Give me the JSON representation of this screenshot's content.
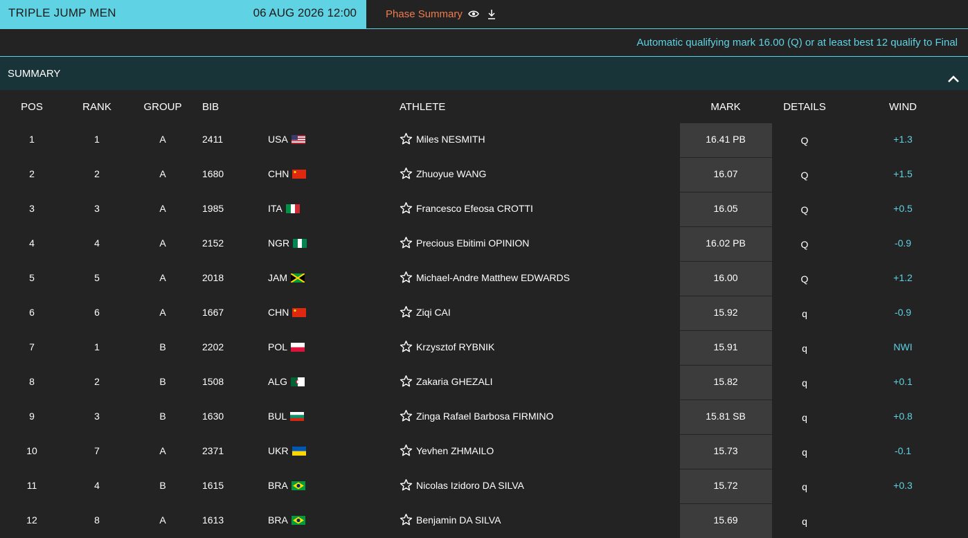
{
  "header": {
    "event": "TRIPLE JUMP MEN",
    "datetime": "06 AUG 2026 12:00",
    "phase_link": "Phase Summary"
  },
  "qualification_note": "Automatic qualifying mark 16.00 (Q) or at least best 12 qualify to Final",
  "section_title": "SUMMARY",
  "columns": {
    "pos": "POS",
    "rank": "RANK",
    "group": "GROUP",
    "bib": "BIB",
    "athlete": "ATHLETE",
    "mark": "MARK",
    "details": "DETAILS",
    "wind": "WIND"
  },
  "colors": {
    "accent": "#5fd3e3",
    "link": "#f07b4e",
    "background": "#232323",
    "summary_bar": "#183438",
    "mark_cell": "#3c3c3c"
  },
  "rows": [
    {
      "pos": "1",
      "rank": "1",
      "group": "A",
      "bib": "2411",
      "country": "USA",
      "athlete": "Miles NESMITH",
      "mark": "16.41 PB",
      "details": "Q",
      "wind": "+1.3"
    },
    {
      "pos": "2",
      "rank": "2",
      "group": "A",
      "bib": "1680",
      "country": "CHN",
      "athlete": "Zhuoyue WANG",
      "mark": "16.07",
      "details": "Q",
      "wind": "+1.5"
    },
    {
      "pos": "3",
      "rank": "3",
      "group": "A",
      "bib": "1985",
      "country": "ITA",
      "athlete": "Francesco Efeosa CROTTI",
      "mark": "16.05",
      "details": "Q",
      "wind": "+0.5"
    },
    {
      "pos": "4",
      "rank": "4",
      "group": "A",
      "bib": "2152",
      "country": "NGR",
      "athlete": "Precious Ebitimi OPINION",
      "mark": "16.02 PB",
      "details": "Q",
      "wind": "-0.9"
    },
    {
      "pos": "5",
      "rank": "5",
      "group": "A",
      "bib": "2018",
      "country": "JAM",
      "athlete": "Michael-Andre Matthew EDWARDS",
      "mark": "16.00",
      "details": "Q",
      "wind": "+1.2"
    },
    {
      "pos": "6",
      "rank": "6",
      "group": "A",
      "bib": "1667",
      "country": "CHN",
      "athlete": "Ziqi CAI",
      "mark": "15.92",
      "details": "q",
      "wind": "-0.9"
    },
    {
      "pos": "7",
      "rank": "1",
      "group": "B",
      "bib": "2202",
      "country": "POL",
      "athlete": "Krzysztof RYBNIK",
      "mark": "15.91",
      "details": "q",
      "wind": "NWI"
    },
    {
      "pos": "8",
      "rank": "2",
      "group": "B",
      "bib": "1508",
      "country": "ALG",
      "athlete": "Zakaria GHEZALI",
      "mark": "15.82",
      "details": "q",
      "wind": "+0.1"
    },
    {
      "pos": "9",
      "rank": "3",
      "group": "B",
      "bib": "1630",
      "country": "BUL",
      "athlete": "Zinga Rafael Barbosa FIRMINO",
      "mark": "15.81 SB",
      "details": "q",
      "wind": "+0.8"
    },
    {
      "pos": "10",
      "rank": "7",
      "group": "A",
      "bib": "2371",
      "country": "UKR",
      "athlete": "Yevhen ZHMAILO",
      "mark": "15.73",
      "details": "q",
      "wind": "-0.1"
    },
    {
      "pos": "11",
      "rank": "4",
      "group": "B",
      "bib": "1615",
      "country": "BRA",
      "athlete": "Nicolas Izidoro DA SILVA",
      "mark": "15.72",
      "details": "q",
      "wind": "+0.3"
    },
    {
      "pos": "12",
      "rank": "8",
      "group": "A",
      "bib": "1613",
      "country": "BRA",
      "athlete": "Benjamin DA SILVA",
      "mark": "15.69",
      "details": "q",
      "wind": ""
    }
  ]
}
